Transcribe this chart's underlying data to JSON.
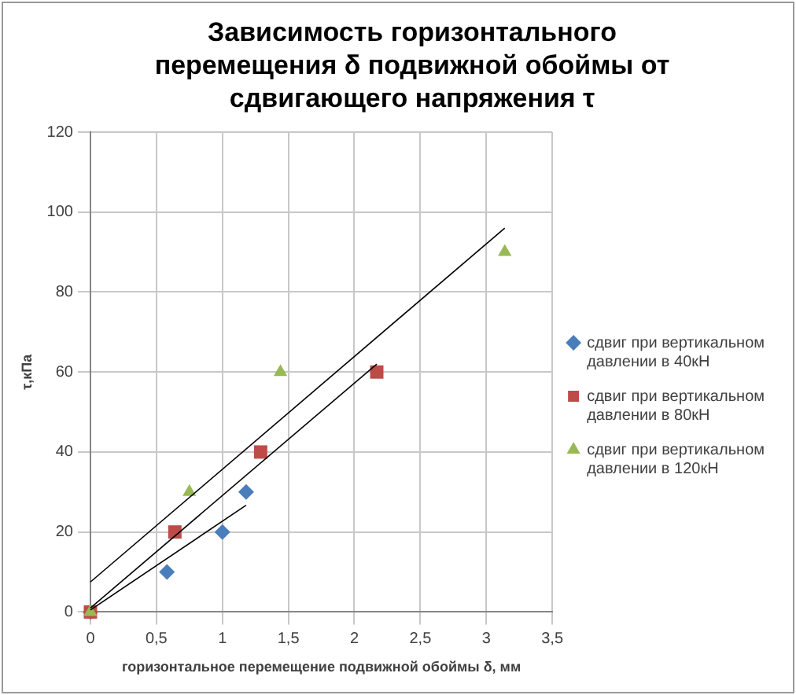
{
  "chart_data": {
    "type": "scatter",
    "title": "Зависимость горизонтального перемещения δ подвижной обоймы от сдвигающего напряжения τ",
    "xlabel": "горизонтальное перемещение подвижной обоймы δ, мм",
    "ylabel": "τ,кПа",
    "xlim": [
      0,
      3.5
    ],
    "xticks": [
      0,
      {
        "value": 0.5,
        "label": "0,5"
      },
      1,
      {
        "value": 1.5,
        "label": "1,5"
      },
      2,
      {
        "value": 2.5,
        "label": "2,5"
      },
      3,
      {
        "value": 3.5,
        "label": "3,5"
      }
    ],
    "ylim": [
      0,
      120
    ],
    "yticks": [
      0,
      20,
      40,
      60,
      80,
      100,
      120
    ],
    "grid": true,
    "legend": "right",
    "series": [
      {
        "name": "сдвиг при вертикальном давлении в 40кН",
        "color": "#4a7ebb",
        "marker": "diamond",
        "x": [
          0,
          0.58,
          1.0,
          1.18
        ],
        "values": [
          0,
          10,
          20,
          30
        ]
      },
      {
        "name": "сдвиг при вертикальном давлении в 80кН",
        "color": "#be4b48",
        "marker": "square",
        "x": [
          0,
          0.64,
          1.29,
          2.17
        ],
        "values": [
          0,
          20,
          40,
          60
        ]
      },
      {
        "name": "сдвиг при вертикальном давлении в 120кН",
        "color": "#98b954",
        "marker": "triangle",
        "x": [
          0,
          0.75,
          1.44,
          3.14
        ],
        "values": [
          0,
          30,
          60,
          90
        ]
      },
      {
        "type": "line",
        "color": "#000000",
        "marker": "none",
        "x": [
          0,
          1.18
        ],
        "values": [
          0.5,
          26.7
        ]
      },
      {
        "type": "line",
        "color": "#000000",
        "marker": "none",
        "x": [
          0,
          2.17
        ],
        "values": [
          1,
          62
        ]
      },
      {
        "type": "line",
        "color": "#000000",
        "marker": "none",
        "x": [
          0,
          3.14
        ],
        "values": [
          7.5,
          96
        ]
      }
    ]
  }
}
